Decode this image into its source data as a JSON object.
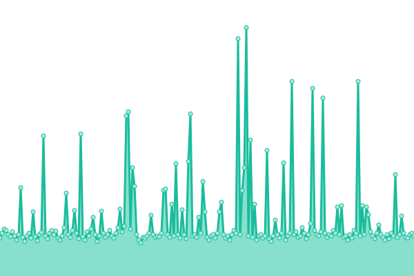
{
  "chart_data": {
    "type": "area",
    "ylim": [
      0,
      400
    ],
    "line_color": "#1abc9c",
    "fill_color": "#86e0cc",
    "marker_color": "#a6ebdb",
    "values": [
      55,
      62,
      68,
      66,
      60,
      57,
      64,
      58,
      52,
      60,
      128,
      56,
      50,
      58,
      62,
      55,
      93,
      57,
      51,
      60,
      63,
      203,
      58,
      54,
      62,
      66,
      60,
      65,
      55,
      52,
      58,
      70,
      120,
      60,
      56,
      66,
      95,
      62,
      54,
      206,
      57,
      52,
      64,
      58,
      68,
      85,
      60,
      50,
      58,
      94,
      62,
      56,
      60,
      66,
      58,
      55,
      62,
      70,
      97,
      64,
      72,
      232,
      238,
      68,
      157,
      130,
      60,
      52,
      48,
      56,
      55,
      58,
      62,
      88,
      60,
      56,
      58,
      57,
      62,
      124,
      126,
      60,
      56,
      104,
      58,
      163,
      60,
      55,
      96,
      60,
      54,
      166,
      235,
      58,
      60,
      56,
      85,
      62,
      137,
      93,
      56,
      52,
      58,
      60,
      55,
      62,
      93,
      107,
      60,
      55,
      58,
      52,
      60,
      66,
      62,
      344,
      60,
      124,
      157,
      360,
      58,
      197,
      56,
      104,
      52,
      58,
      60,
      55,
      58,
      182,
      54,
      50,
      58,
      81,
      60,
      55,
      62,
      164,
      52,
      58,
      62,
      282,
      60,
      64,
      56,
      58,
      70,
      62,
      54,
      60,
      76,
      272,
      66,
      60,
      58,
      64,
      258,
      62,
      56,
      60,
      58,
      66,
      62,
      100,
      60,
      102,
      56,
      58,
      52,
      60,
      55,
      66,
      62,
      282,
      58,
      102,
      60,
      100,
      89,
      64,
      58,
      54,
      62,
      74,
      60,
      56,
      52,
      60,
      54,
      62,
      58,
      147,
      56,
      60,
      87,
      62,
      56,
      55,
      60,
      62,
      58
    ]
  }
}
